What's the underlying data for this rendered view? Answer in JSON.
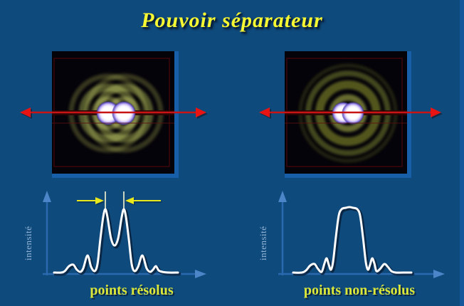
{
  "title": "Pouvoir séparateur",
  "panels": {
    "left": {
      "ylabel": "intensité",
      "caption": "points résolus"
    },
    "right": {
      "ylabel": "intensité",
      "caption": "points non-résolus"
    }
  },
  "colors": {
    "background": "#0f4a7d",
    "title_text": "#f8f832",
    "caption_text": "#dbe83a",
    "curve": "#ffffff",
    "axis": "#2a69ae",
    "beam_line": "#c81414",
    "separation_marker": "#e8e81c",
    "diffraction_ring": "#565a26",
    "image_background": "#05030a"
  },
  "curves": {
    "resolved": [
      [
        46,
        125
      ],
      [
        56,
        125
      ],
      [
        61,
        123
      ],
      [
        67,
        116
      ],
      [
        73,
        114
      ],
      [
        78,
        121
      ],
      [
        83,
        124
      ],
      [
        87,
        119
      ],
      [
        93,
        101
      ],
      [
        98,
        117
      ],
      [
        103,
        123
      ],
      [
        107,
        113
      ],
      [
        111,
        78
      ],
      [
        115,
        47
      ],
      [
        118,
        36
      ],
      [
        121,
        47
      ],
      [
        126,
        77
      ],
      [
        131,
        87
      ],
      [
        136,
        77
      ],
      [
        141,
        47
      ],
      [
        144,
        36
      ],
      [
        147,
        47
      ],
      [
        151,
        78
      ],
      [
        155,
        113
      ],
      [
        159,
        123
      ],
      [
        164,
        117
      ],
      [
        170,
        101
      ],
      [
        176,
        119
      ],
      [
        181,
        124
      ],
      [
        185,
        121
      ],
      [
        189,
        116
      ],
      [
        193,
        122
      ],
      [
        198,
        124
      ],
      [
        207,
        125
      ],
      [
        220,
        125
      ]
    ],
    "unresolved": [
      [
        52,
        125
      ],
      [
        64,
        125
      ],
      [
        70,
        122
      ],
      [
        76,
        115
      ],
      [
        82,
        113
      ],
      [
        87,
        120
      ],
      [
        92,
        124
      ],
      [
        96,
        112
      ],
      [
        99,
        105
      ],
      [
        102,
        114
      ],
      [
        105,
        121
      ],
      [
        108,
        110
      ],
      [
        112,
        75
      ],
      [
        116,
        45
      ],
      [
        120,
        36
      ],
      [
        126,
        34
      ],
      [
        131,
        33
      ],
      [
        136,
        34
      ],
      [
        142,
        36
      ],
      [
        146,
        45
      ],
      [
        150,
        75
      ],
      [
        154,
        110
      ],
      [
        157,
        121
      ],
      [
        160,
        114
      ],
      [
        163,
        105
      ],
      [
        166,
        112
      ],
      [
        169,
        123
      ],
      [
        174,
        120
      ],
      [
        180,
        113
      ],
      [
        185,
        117
      ],
      [
        190,
        123
      ],
      [
        196,
        125
      ],
      [
        206,
        125
      ],
      [
        218,
        125
      ]
    ]
  }
}
